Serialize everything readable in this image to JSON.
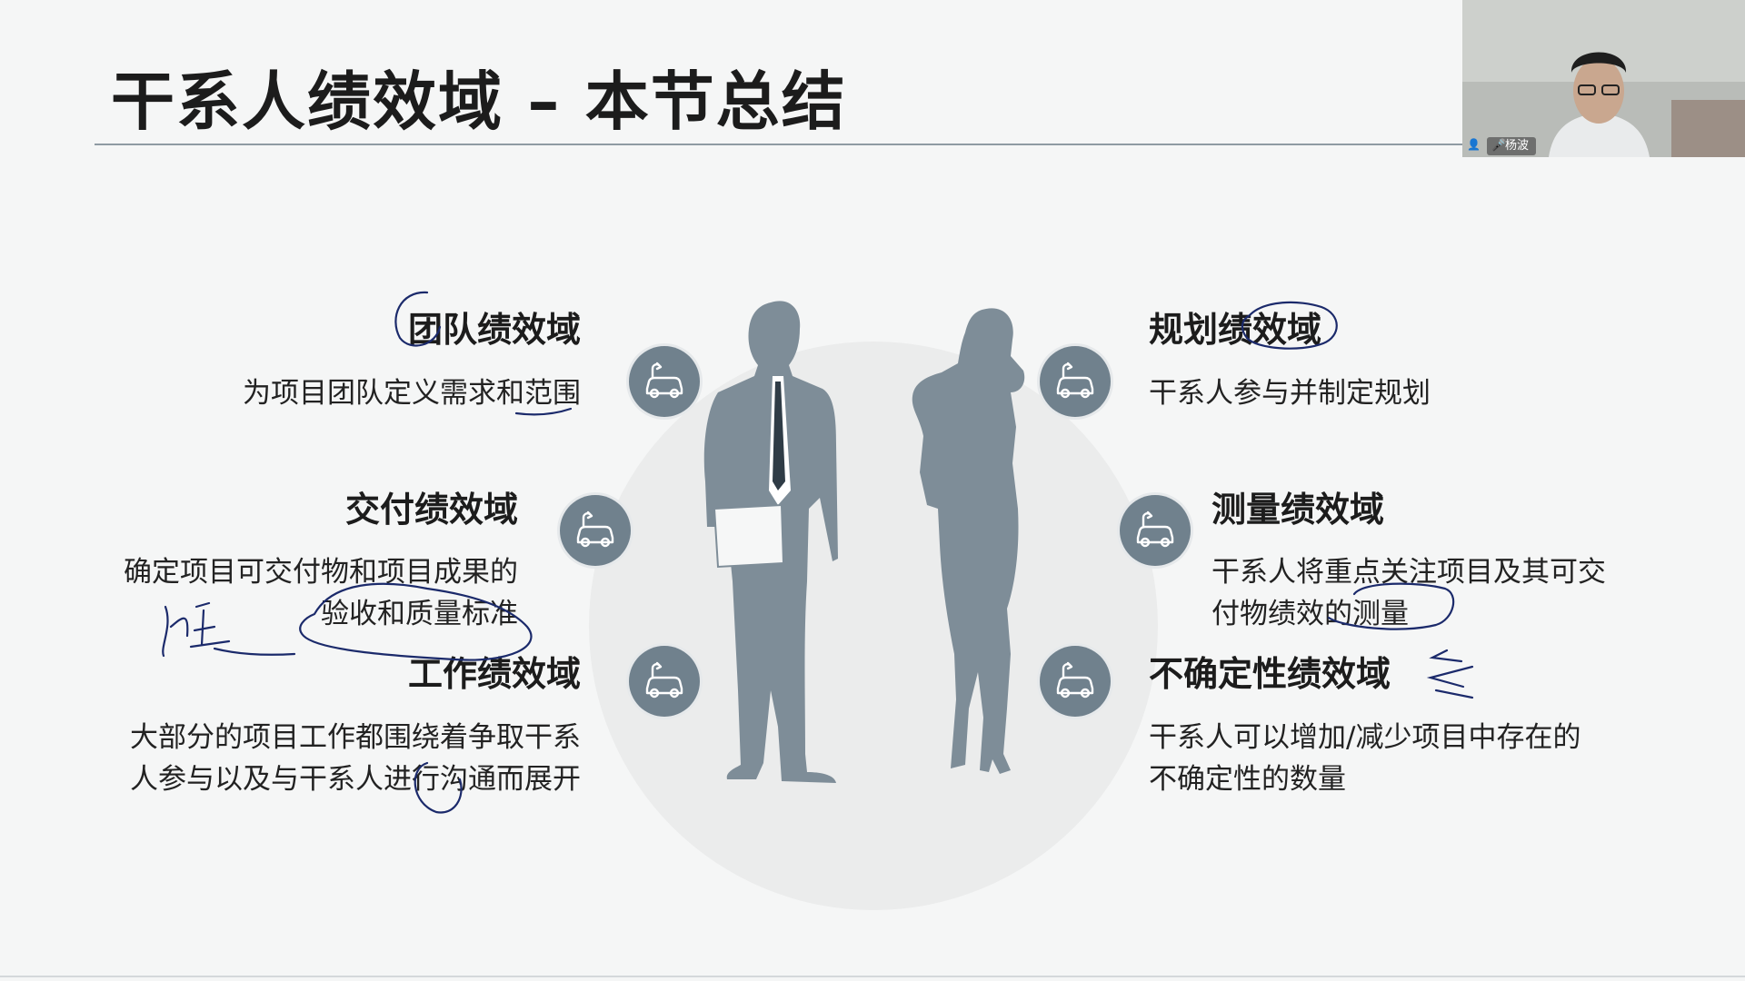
{
  "slide": {
    "title": "干系人绩效域 – 本节总结",
    "domains": [
      {
        "title": "团队绩效域",
        "desc_lines": [
          "为项目团队定义需求和范围"
        ]
      },
      {
        "title": "交付绩效域",
        "desc_lines": [
          "确定项目可交付物和项目成果的",
          "验收和质量标准"
        ]
      },
      {
        "title": "工作绩效域",
        "desc_lines": [
          "大部分的项目工作都围绕着争取干系",
          "人参与以及与干系人进行沟通而展开"
        ]
      },
      {
        "title": "规划绩效域",
        "desc_lines": [
          "干系人参与并制定规划"
        ]
      },
      {
        "title": "测量绩效域",
        "desc_lines": [
          "干系人将重点关注项目及其可交",
          "付物绩效的测量"
        ]
      },
      {
        "title": "不确定性绩效域",
        "desc_lines": [
          "干系人可以增加/减少项目中存在的",
          "不确定性的数量"
        ]
      }
    ]
  },
  "webcam": {
    "name": "杨波"
  },
  "colors": {
    "accent": "#70818d",
    "figure": "#7e8d98",
    "ink": "#1b2a6b"
  },
  "icons": [
    "car-charging-icon",
    "microphone-icon",
    "person-icon"
  ]
}
